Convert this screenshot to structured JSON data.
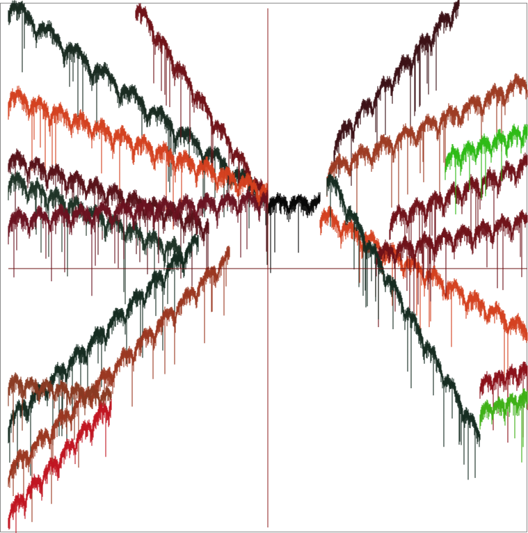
{
  "figure": {
    "background": "#ffffff",
    "frame_color": "#8a8a8a",
    "axis_color": "#8b1a1a",
    "axis_h_color": "#6b1010"
  },
  "curves": [
    {
      "name": "black-center-arch",
      "color": "#050505"
    },
    {
      "name": "dark-red-upper-left",
      "color": "#6e1016"
    },
    {
      "name": "dark-green-upper-left",
      "color": "#17291f"
    },
    {
      "name": "orange-left",
      "color": "#d4401e"
    },
    {
      "name": "maroon-left-a",
      "color": "#561018"
    },
    {
      "name": "dark-green-left-b",
      "color": "#1d3326"
    },
    {
      "name": "maroon-left-c",
      "color": "#6a1220"
    },
    {
      "name": "green-descent-left",
      "color": "#142a1f"
    },
    {
      "name": "brown-left-d",
      "color": "#9a3620"
    },
    {
      "name": "brown-left-e",
      "color": "#8a3a22"
    },
    {
      "name": "red-bottom-left",
      "color": "#c01420"
    },
    {
      "name": "dark-red-right-top",
      "color": "#3a0e14"
    },
    {
      "name": "brown-right-a",
      "color": "#9c3a22"
    },
    {
      "name": "green-right",
      "color": "#2cba14"
    },
    {
      "name": "maroon-right",
      "color": "#6e1018"
    },
    {
      "name": "orange-right",
      "color": "#d4401e"
    },
    {
      "name": "dark-green-right",
      "color": "#142a1f"
    },
    {
      "name": "maroon-right-b",
      "color": "#6e1018"
    },
    {
      "name": "green-right-low",
      "color": "#3cb014"
    },
    {
      "name": "dark-red-right-low",
      "color": "#8a0e18"
    }
  ]
}
